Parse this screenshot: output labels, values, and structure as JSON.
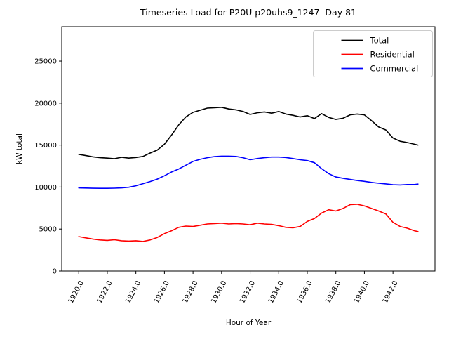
{
  "figure": {
    "title": "Timeseries Load for P20U p20uhs9_1247  Day 81",
    "xlabel": "Hour of Year",
    "ylabel": "kW total",
    "background": "#ffffff"
  },
  "chart_data": {
    "type": "line",
    "title": "Timeseries Load for P20U p20uhs9_1247  Day 81",
    "xlabel": "Hour of Year",
    "ylabel": "kW total",
    "grid": false,
    "legend_position": "upper right",
    "xlim": [
      1918.81,
      1944.94
    ],
    "ylim": [
      0,
      29100
    ],
    "x_ticks": [
      1920,
      1922,
      1924,
      1926,
      1928,
      1930,
      1932,
      1934,
      1936,
      1938,
      1940,
      1942
    ],
    "x_tick_labels": [
      "1920.0",
      "1922.0",
      "1924.0",
      "1926.0",
      "1928.0",
      "1930.0",
      "1932.0",
      "1934.0",
      "1936.0",
      "1938.0",
      "1940.0",
      "1942.0"
    ],
    "y_ticks": [
      0,
      5000,
      10000,
      15000,
      20000,
      25000
    ],
    "y_tick_labels": [
      "0",
      "5000",
      "10000",
      "15000",
      "20000",
      "25000"
    ],
    "x": [
      1920.0,
      1920.5,
      1921.0,
      1921.5,
      1922.0,
      1922.5,
      1923.0,
      1923.5,
      1924.0,
      1924.5,
      1925.0,
      1925.5,
      1926.0,
      1926.5,
      1927.0,
      1927.5,
      1928.0,
      1928.5,
      1929.0,
      1929.5,
      1930.0,
      1930.5,
      1931.0,
      1931.5,
      1932.0,
      1932.5,
      1933.0,
      1933.5,
      1934.0,
      1934.5,
      1935.0,
      1935.5,
      1936.0,
      1936.5,
      1937.0,
      1937.5,
      1938.0,
      1938.5,
      1939.0,
      1939.5,
      1940.0,
      1940.5,
      1941.0,
      1941.5,
      1942.0,
      1942.5,
      1943.0,
      1943.5,
      1943.75
    ],
    "series": [
      {
        "name": "Total",
        "color": "#000000",
        "values": [
          13900,
          13750,
          13600,
          13500,
          13450,
          13380,
          13550,
          13450,
          13520,
          13650,
          14050,
          14400,
          15100,
          16200,
          17400,
          18350,
          18900,
          19150,
          19400,
          19450,
          19500,
          19300,
          19200,
          19000,
          18650,
          18850,
          18950,
          18800,
          19000,
          18700,
          18550,
          18350,
          18500,
          18150,
          18750,
          18300,
          18050,
          18200,
          18600,
          18700,
          18600,
          17900,
          17150,
          16800,
          15850,
          15450,
          15300,
          15100,
          15000
        ]
      },
      {
        "name": "Residential",
        "color": "#ff0000",
        "values": [
          4100,
          3950,
          3800,
          3700,
          3650,
          3720,
          3600,
          3560,
          3600,
          3520,
          3700,
          4000,
          4450,
          4800,
          5200,
          5350,
          5300,
          5450,
          5600,
          5650,
          5700,
          5600,
          5650,
          5600,
          5500,
          5700,
          5600,
          5550,
          5400,
          5200,
          5150,
          5300,
          5900,
          6250,
          6900,
          7300,
          7150,
          7450,
          7900,
          7950,
          7750,
          7450,
          7150,
          6800,
          5800,
          5300,
          5100,
          4800,
          4700
        ]
      },
      {
        "name": "Commercial",
        "color": "#0000ff",
        "values": [
          9900,
          9880,
          9860,
          9850,
          9850,
          9870,
          9900,
          9980,
          10150,
          10400,
          10650,
          10950,
          11350,
          11800,
          12150,
          12600,
          13050,
          13300,
          13500,
          13620,
          13680,
          13680,
          13650,
          13500,
          13250,
          13400,
          13500,
          13570,
          13570,
          13520,
          13400,
          13250,
          13150,
          12900,
          12200,
          11600,
          11200,
          11050,
          10900,
          10780,
          10680,
          10550,
          10450,
          10380,
          10280,
          10250,
          10300,
          10300,
          10350
        ]
      }
    ]
  }
}
